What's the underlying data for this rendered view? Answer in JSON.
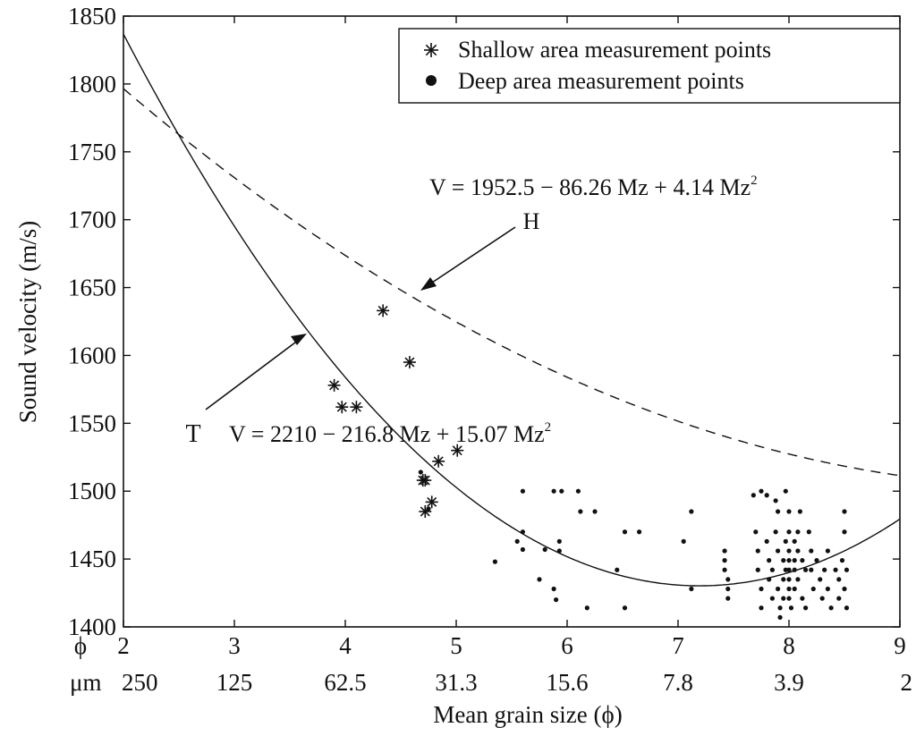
{
  "chart_data": {
    "type": "scatter",
    "ylabel": "Sound velocity (m/s)",
    "xlabel": "Mean grain size (ϕ)",
    "xlim": [
      2,
      9
    ],
    "ylim": [
      1400,
      1850
    ],
    "x_ticks": [
      2,
      3,
      4,
      5,
      6,
      7,
      8,
      9
    ],
    "x_tick_labels": [
      "2",
      "3",
      "4",
      "5",
      "6",
      "7",
      "8",
      "9"
    ],
    "um_ticks": [
      "250",
      "125",
      "62.5",
      "31.3",
      "15.6",
      "7.8",
      "3.9",
      "2"
    ],
    "y_ticks": [
      1400,
      1450,
      1500,
      1550,
      1600,
      1650,
      1700,
      1750,
      1800,
      1850
    ],
    "y_tick_labels": [
      "1400",
      "1450",
      "1500",
      "1550",
      "1600",
      "1650",
      "1700",
      "1750",
      "1800",
      "1850"
    ],
    "phi_row_label": "ϕ",
    "um_row_label": "μm",
    "legend": {
      "position": "top-right",
      "entries": [
        {
          "marker": "asterisk",
          "label": "Shallow area measurement points"
        },
        {
          "marker": "dot",
          "label": "Deep area measurement points"
        }
      ]
    },
    "curves": [
      {
        "name": "H",
        "style": "dashed",
        "a": 1952.5,
        "b": -86.26,
        "c": 4.14,
        "equation_text": "V = 1952.5 − 86.26 Mz + 4.14 Mz",
        "pointer_label": "H"
      },
      {
        "name": "T",
        "style": "solid",
        "a": 2210,
        "b": -216.8,
        "c": 15.07,
        "equation_text": "V = 2210 − 216.8 Mz + 15.07 Mz",
        "pointer_label": "T"
      }
    ],
    "equation_superscript": "2",
    "series": [
      {
        "name": "Shallow area measurement points",
        "marker": "asterisk",
        "points": [
          [
            3.9,
            1578
          ],
          [
            3.97,
            1562
          ],
          [
            4.1,
            1562
          ],
          [
            4.34,
            1633
          ],
          [
            4.58,
            1595
          ],
          [
            4.7,
            1508
          ],
          [
            4.72,
            1508
          ],
          [
            4.72,
            1485
          ],
          [
            4.78,
            1492
          ],
          [
            4.84,
            1522
          ],
          [
            5.01,
            1530
          ]
        ]
      },
      {
        "name": "Deep area measurement points",
        "marker": "dot",
        "points": [
          [
            4.68,
            1514
          ],
          [
            4.75,
            1487
          ],
          [
            5.35,
            1448
          ],
          [
            5.55,
            1463
          ],
          [
            5.6,
            1457
          ],
          [
            5.6,
            1500
          ],
          [
            5.6,
            1470
          ],
          [
            5.75,
            1435
          ],
          [
            5.8,
            1457
          ],
          [
            5.88,
            1500
          ],
          [
            5.88,
            1428
          ],
          [
            5.9,
            1420
          ],
          [
            5.93,
            1463
          ],
          [
            5.93,
            1456
          ],
          [
            5.95,
            1500
          ],
          [
            6.1,
            1500
          ],
          [
            6.12,
            1485
          ],
          [
            6.18,
            1414
          ],
          [
            6.25,
            1485
          ],
          [
            6.45,
            1442
          ],
          [
            6.52,
            1470
          ],
          [
            6.52,
            1414
          ],
          [
            6.65,
            1470
          ],
          [
            7.05,
            1463
          ],
          [
            7.12,
            1485
          ],
          [
            7.12,
            1428
          ],
          [
            7.42,
            1456
          ],
          [
            7.42,
            1449
          ],
          [
            7.42,
            1442
          ],
          [
            7.45,
            1435
          ],
          [
            7.45,
            1428
          ],
          [
            7.45,
            1421
          ],
          [
            7.68,
            1497
          ],
          [
            7.7,
            1470
          ],
          [
            7.72,
            1456
          ],
          [
            7.72,
            1442
          ],
          [
            7.75,
            1500
          ],
          [
            7.75,
            1428
          ],
          [
            7.75,
            1414
          ],
          [
            7.8,
            1497
          ],
          [
            7.8,
            1463
          ],
          [
            7.82,
            1449
          ],
          [
            7.82,
            1435
          ],
          [
            7.85,
            1421
          ],
          [
            7.85,
            1442
          ],
          [
            7.88,
            1493
          ],
          [
            7.88,
            1470
          ],
          [
            7.9,
            1485
          ],
          [
            7.9,
            1456
          ],
          [
            7.9,
            1428
          ],
          [
            7.92,
            1414
          ],
          [
            7.92,
            1407
          ],
          [
            7.95,
            1449
          ],
          [
            7.95,
            1435
          ],
          [
            7.95,
            1421
          ],
          [
            7.97,
            1500
          ],
          [
            7.97,
            1463
          ],
          [
            7.97,
            1442
          ],
          [
            8.0,
            1485
          ],
          [
            8.0,
            1470
          ],
          [
            8.0,
            1456
          ],
          [
            8.0,
            1449
          ],
          [
            8.0,
            1442
          ],
          [
            8.0,
            1435
          ],
          [
            8.0,
            1428
          ],
          [
            8.0,
            1421
          ],
          [
            8.02,
            1414
          ],
          [
            8.05,
            1463
          ],
          [
            8.05,
            1449
          ],
          [
            8.05,
            1442
          ],
          [
            8.05,
            1428
          ],
          [
            8.08,
            1470
          ],
          [
            8.08,
            1456
          ],
          [
            8.08,
            1435
          ],
          [
            8.1,
            1485
          ],
          [
            8.12,
            1449
          ],
          [
            8.12,
            1421
          ],
          [
            8.15,
            1442
          ],
          [
            8.15,
            1414
          ],
          [
            8.18,
            1470
          ],
          [
            8.2,
            1456
          ],
          [
            8.2,
            1442
          ],
          [
            8.22,
            1428
          ],
          [
            8.25,
            1449
          ],
          [
            8.28,
            1435
          ],
          [
            8.3,
            1421
          ],
          [
            8.32,
            1442
          ],
          [
            8.35,
            1456
          ],
          [
            8.35,
            1428
          ],
          [
            8.38,
            1414
          ],
          [
            8.42,
            1442
          ],
          [
            8.45,
            1435
          ],
          [
            8.45,
            1421
          ],
          [
            8.48,
            1449
          ],
          [
            8.5,
            1485
          ],
          [
            8.5,
            1470
          ],
          [
            8.5,
            1428
          ],
          [
            8.52,
            1414
          ],
          [
            8.52,
            1442
          ]
        ]
      }
    ]
  }
}
